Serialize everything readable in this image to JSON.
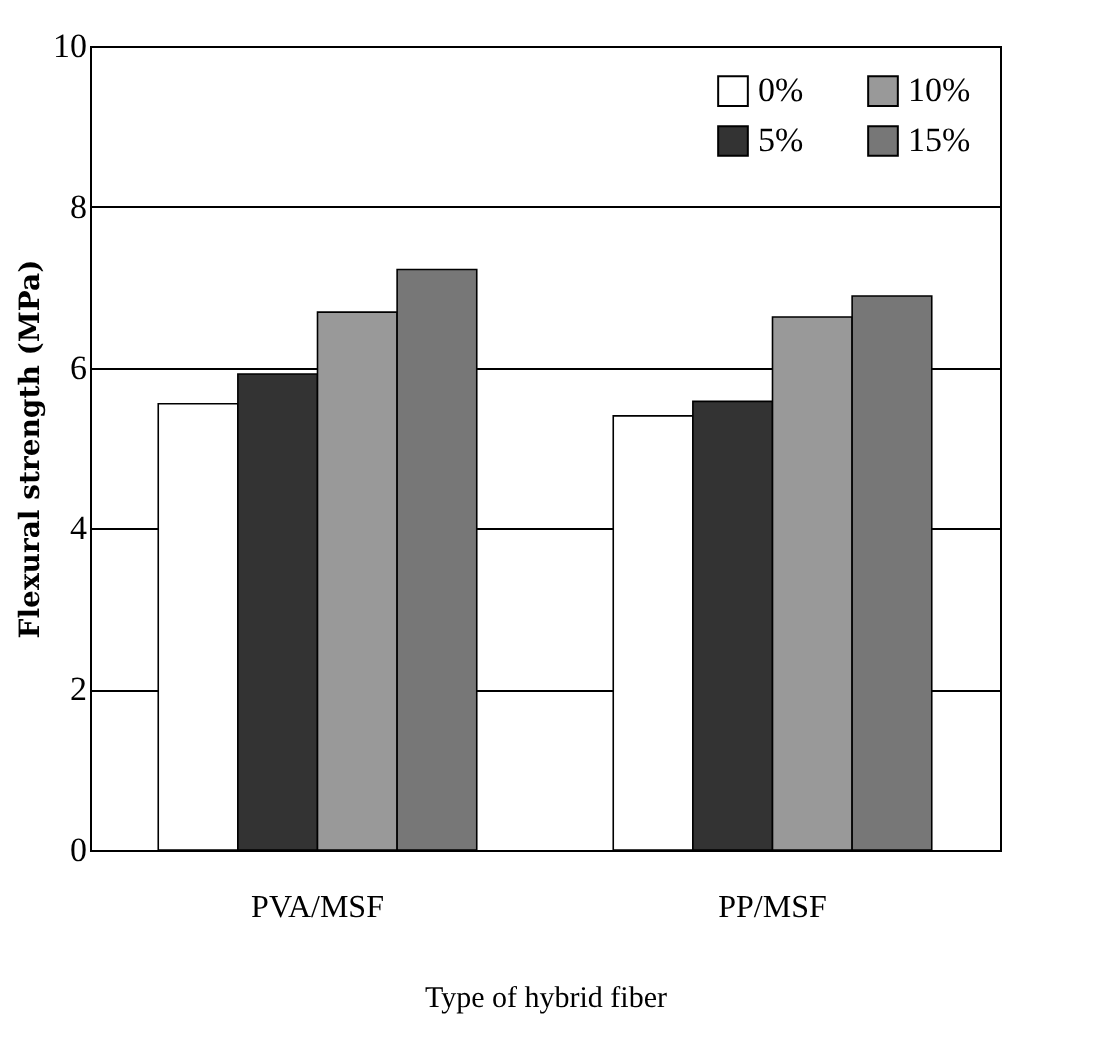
{
  "chart_data": {
    "type": "bar",
    "xlabel": "Type of hybrid fiber",
    "ylabel": "Flexural strength (MPa)",
    "categories": [
      "PVA/MSF",
      "PP/MSF"
    ],
    "series": [
      {
        "name": "0%",
        "color": "#ffffff",
        "values": [
          5.55,
          5.4
        ]
      },
      {
        "name": "5%",
        "color": "#333333",
        "values": [
          5.92,
          5.58
        ]
      },
      {
        "name": "10%",
        "color": "#999999",
        "values": [
          6.69,
          6.63
        ]
      },
      {
        "name": "15%",
        "color": "#777777",
        "values": [
          7.22,
          6.89
        ]
      }
    ],
    "ylim": [
      0,
      10
    ],
    "yticks": [
      0,
      2,
      4,
      6,
      8,
      10
    ],
    "grid": "y",
    "legend": "top right"
  }
}
